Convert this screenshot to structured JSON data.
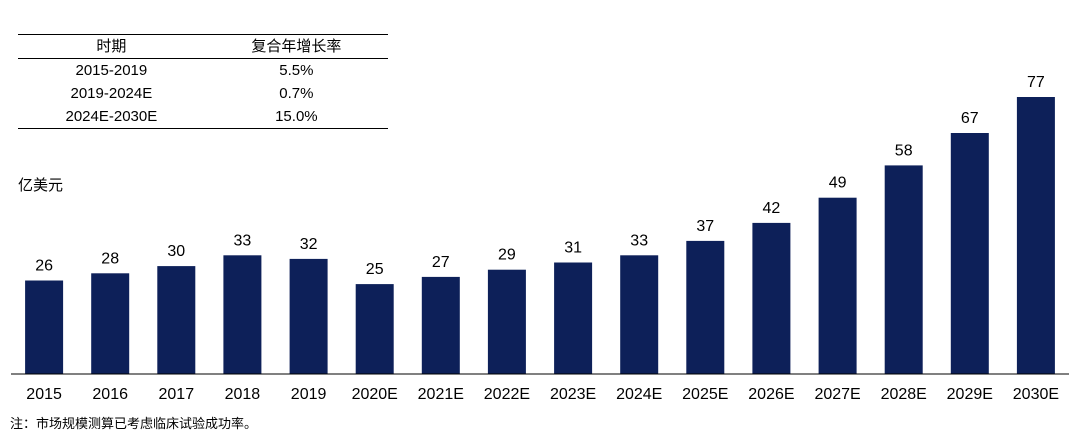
{
  "table": {
    "headers": [
      "时期",
      "复合年增长率"
    ],
    "rows": [
      [
        "2015-2019",
        "5.5%"
      ],
      [
        "2019-2024E",
        "0.7%"
      ],
      [
        "2024E-2030E",
        "15.0%"
      ]
    ]
  },
  "unit_label": "亿美元",
  "note": "注：市场规模测算已考虑临床试验成功率。",
  "colors": {
    "bar": "#0d2059",
    "axis": "#000000"
  },
  "chart_data": {
    "type": "bar",
    "title": "",
    "xlabel": "",
    "ylabel": "亿美元",
    "ylim": [
      0,
      77
    ],
    "grid": false,
    "legend": "none",
    "categories": [
      "2015",
      "2016",
      "2017",
      "2018",
      "2019",
      "2020E",
      "2021E",
      "2022E",
      "2023E",
      "2024E",
      "2025E",
      "2026E",
      "2027E",
      "2028E",
      "2029E",
      "2030E"
    ],
    "values": [
      26,
      28,
      30,
      33,
      32,
      25,
      27,
      29,
      31,
      33,
      37,
      42,
      49,
      58,
      67,
      77
    ]
  }
}
